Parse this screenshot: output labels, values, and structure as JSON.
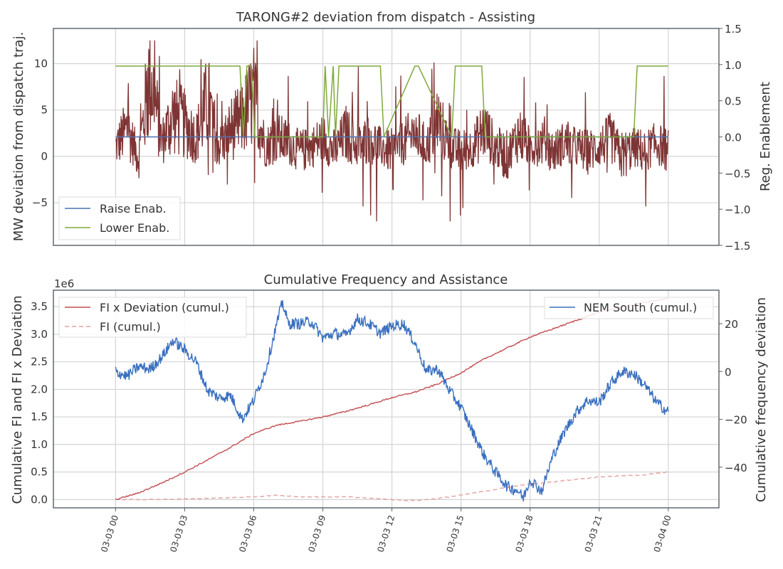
{
  "chart_data": [
    {
      "type": "line",
      "title": "TARONG#2 deviation from dispatch - Assisting",
      "ylabel": "MW deviation from dispatch traj.",
      "y2label": "Reg. Enablement",
      "ylim": [
        -9.6,
        13.8
      ],
      "y2lim": [
        -1.5,
        1.5
      ],
      "yticks": [
        "−5",
        "0",
        "5",
        "10"
      ],
      "ytick_values": [
        -5,
        0,
        5,
        10
      ],
      "y2ticks": [
        "−1.5",
        "−1.0",
        "−0.5",
        "0.0",
        "0.5",
        "1.0",
        "1.5"
      ],
      "y2tick_values": [
        -1.5,
        -1.0,
        -0.5,
        0.0,
        0.5,
        1.0,
        1.5
      ],
      "xlim_hours": [
        -2.7,
        26.2
      ],
      "grid": true,
      "legend_position": "lower-left",
      "series": [
        {
          "name": "Raise Enab.",
          "axis": "right",
          "color": "#4c72b0",
          "x_hours": [
            0,
            24
          ],
          "values": [
            0,
            0
          ]
        },
        {
          "name": "Lower Enab.",
          "axis": "right",
          "color": "#7faa3a",
          "x_hours": [
            0,
            1.2,
            1.35,
            5.4,
            5.55,
            5.7,
            5.9,
            6.05,
            9.0,
            9.1,
            9.25,
            9.45,
            9.55,
            9.7,
            11.5,
            11.65,
            13.0,
            13.15,
            14.6,
            14.75,
            15.9,
            16.05,
            22.5,
            22.65,
            24
          ],
          "values": [
            0.98,
            0.98,
            0.98,
            0.98,
            0.0,
            0.98,
            0.98,
            0.0,
            0.0,
            0.98,
            0.0,
            0.98,
            0.0,
            0.98,
            0.98,
            0.0,
            0.98,
            0.98,
            0.0,
            0.98,
            0.98,
            0.0,
            0.0,
            0.98,
            0.98
          ]
        },
        {
          "name": "MW deviation",
          "axis": "left",
          "color": "#7f3434",
          "x_hours": [
            0,
            0.5,
            1.0,
            1.5,
            2.0,
            2.5,
            3.0,
            3.5,
            4.0,
            4.5,
            5.0,
            5.5,
            6.0,
            6.5,
            7.0,
            7.5,
            8.0,
            8.5,
            9.0,
            9.5,
            10.0,
            10.5,
            11.0,
            11.5,
            12.0,
            12.5,
            13.0,
            13.5,
            14.0,
            14.5,
            15.0,
            15.5,
            16.0,
            16.5,
            17.0,
            17.5,
            18.0,
            18.5,
            19.0,
            19.5,
            20.0,
            20.5,
            21.0,
            21.5,
            22.0,
            22.5,
            23.0,
            23.5,
            24.0
          ],
          "values": [
            1.0,
            3.0,
            0.0,
            9.0,
            1.5,
            4.5,
            3.5,
            2.0,
            6.0,
            1.0,
            3.0,
            4.0,
            6.5,
            1.0,
            2.0,
            1.5,
            0.5,
            1.0,
            2.0,
            0.5,
            2.5,
            1.0,
            2.0,
            1.0,
            0.5,
            1.5,
            2.5,
            1.0,
            4.0,
            1.0,
            0.5,
            1.0,
            3.0,
            1.0,
            0.0,
            2.5,
            1.0,
            1.5,
            0.5,
            1.5,
            1.0,
            0.5,
            1.0,
            2.0,
            0.0,
            1.0,
            0.5,
            1.5,
            0.5
          ]
        }
      ]
    },
    {
      "type": "line",
      "title": "Cumulative Frequency and Assistance",
      "ylabel": "Cumulative FI and FI x Deviation",
      "y2label": "Cumulative frequency deviation",
      "offset_text": "1e6",
      "ylim": [
        -0.15,
        3.8
      ],
      "y2lim": [
        -57,
        34
      ],
      "yticks": [
        "0.0",
        "0.5",
        "1.0",
        "1.5",
        "2.0",
        "2.5",
        "3.0",
        "3.5"
      ],
      "ytick_values": [
        0.0,
        0.5,
        1.0,
        1.5,
        2.0,
        2.5,
        3.0,
        3.5
      ],
      "y2ticks": [
        "−40",
        "−20",
        "0",
        "20"
      ],
      "y2tick_values": [
        -40,
        -20,
        0,
        20
      ],
      "xlim_hours": [
        -2.7,
        26.2
      ],
      "xticks": [
        "03-03 00",
        "03-03 03",
        "03-03 06",
        "03-03 09",
        "03-03 12",
        "03-03 15",
        "03-03 18",
        "03-03 21",
        "03-04 00"
      ],
      "xtick_hours": [
        0,
        3,
        6,
        9,
        12,
        15,
        18,
        21,
        24
      ],
      "grid": true,
      "legend_left_position": "top-left",
      "legend_right_position": "top-right",
      "series": [
        {
          "name": "FI x Deviation (cumul.)",
          "axis": "left",
          "color": "#c44e52",
          "style": "solid",
          "x_hours": [
            0,
            1,
            2,
            3,
            4,
            5,
            6,
            7,
            8,
            9,
            10,
            11,
            12,
            13,
            14,
            15,
            16,
            17,
            18,
            19,
            20,
            21,
            22,
            23,
            24
          ],
          "values": [
            0.0,
            0.12,
            0.3,
            0.5,
            0.72,
            0.95,
            1.2,
            1.35,
            1.42,
            1.5,
            1.6,
            1.72,
            1.85,
            1.95,
            2.1,
            2.3,
            2.55,
            2.75,
            2.95,
            3.1,
            3.25,
            3.4,
            3.5,
            3.58,
            3.65
          ]
        },
        {
          "name": "FI (cumul.)",
          "axis": "left",
          "color": "#e4a0a0",
          "style": "dashed",
          "x_hours": [
            0,
            2,
            4,
            6,
            7,
            8,
            10,
            12,
            13,
            14,
            15,
            16,
            17,
            18,
            19,
            20,
            21,
            22,
            23,
            24
          ],
          "values": [
            0.0,
            0.0,
            0.02,
            0.05,
            0.08,
            0.05,
            0.05,
            0.0,
            -0.02,
            0.02,
            0.08,
            0.15,
            0.22,
            0.28,
            0.32,
            0.37,
            0.41,
            0.43,
            0.45,
            0.5
          ]
        },
        {
          "name": "NEM South (cumul.)",
          "axis": "right",
          "color": "#3a70bf",
          "style": "solid",
          "x_hours": [
            0,
            0.5,
            1.0,
            1.5,
            2.0,
            2.5,
            3.0,
            3.5,
            4.0,
            4.5,
            5.0,
            5.5,
            6.0,
            6.5,
            7.0,
            7.25,
            7.5,
            8.0,
            8.5,
            9.0,
            9.5,
            10.0,
            10.5,
            11.0,
            11.5,
            12.0,
            12.5,
            13.0,
            13.5,
            14.0,
            14.5,
            15.0,
            15.5,
            16.0,
            16.5,
            17.0,
            17.5,
            17.7,
            18.0,
            18.5,
            19.0,
            19.5,
            20.0,
            20.5,
            21.0,
            21.5,
            22.0,
            22.5,
            23.0,
            23.5,
            24.0
          ],
          "values": [
            0,
            -2,
            2,
            1,
            6,
            13,
            9,
            4,
            -8,
            -11,
            -10,
            -20,
            -12,
            0,
            20,
            29,
            20,
            20,
            21,
            14,
            16,
            15,
            22,
            20,
            16,
            19,
            20,
            12,
            0,
            1,
            -8,
            -15,
            -25,
            -35,
            -42,
            -48,
            -50,
            -53,
            -45,
            -50,
            -35,
            -25,
            -17,
            -12,
            -13,
            -5,
            0,
            -1,
            -6,
            -13,
            -17
          ]
        }
      ]
    }
  ]
}
